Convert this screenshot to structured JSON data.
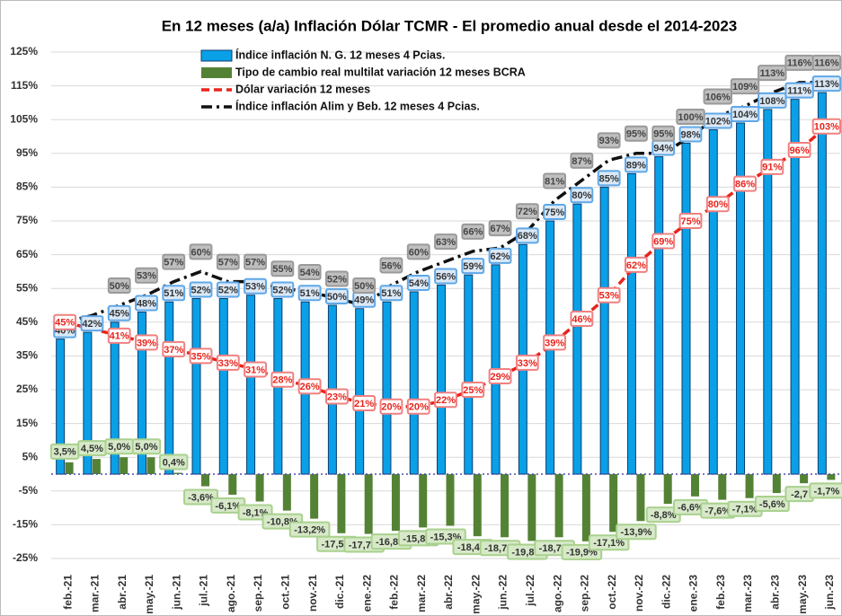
{
  "chart_data": {
    "type": "bar",
    "title": "En 12 meses  (a/a) Inflación Dólar TCMR -  El promedio anual desde el 2014-2023",
    "categories": [
      "feb.-21",
      "mar.-21",
      "abr.-21",
      "may.-21",
      "jun.-21",
      "jul.-21",
      "ago.-21",
      "sep.-21",
      "oct.-21",
      "nov.-21",
      "dic.-21",
      "ene.-22",
      "feb.-22",
      "mar.-22",
      "abr.-22",
      "may.-22",
      "jun.-22",
      "jul.-22",
      "ago.-22",
      "sep.-22",
      "oct.-22",
      "nov.-22",
      "dic.-22",
      "ene.-23",
      "feb.-23",
      "mar.-23",
      "abr.-23",
      "may.-23",
      "jun.-23"
    ],
    "series": [
      {
        "name": "Índice inflación N. G. 12 meses 4 Pcias.",
        "kind": "bar",
        "color": "#0aa0e8",
        "values": [
          40,
          42,
          45,
          48,
          51,
          52,
          52,
          53,
          52,
          51,
          50,
          49,
          51,
          54,
          56,
          59,
          62,
          68,
          75,
          80,
          85,
          89,
          94,
          98,
          102,
          104,
          108,
          111,
          113
        ],
        "value_labels": [
          "40%",
          "42%",
          "45%",
          "48%",
          "51%",
          "52%",
          "52%",
          "53%",
          "52%",
          "51%",
          "50%",
          "49%",
          "51%",
          "54%",
          "56%",
          "59%",
          "62%",
          "68%",
          "75%",
          "80%",
          "85%",
          "89%",
          "94%",
          "98%",
          "102%",
          "104%",
          "108%",
          "111%",
          "113%"
        ]
      },
      {
        "name": "Tipo de cambio real multilat variación 12 meses BCRA",
        "kind": "bar",
        "color": "#548235",
        "values": [
          3.5,
          4.5,
          5.0,
          5.0,
          0.4,
          -3.6,
          -6.1,
          -8.1,
          -10.8,
          -13.2,
          -17.5,
          -17.7,
          -16.8,
          -15.8,
          -15.3,
          -18.4,
          -18.7,
          -19.8,
          -18.7,
          -19.9,
          -17.1,
          -13.9,
          -8.8,
          -6.6,
          -7.6,
          -7.1,
          -5.6,
          -2.7,
          -1.7
        ],
        "value_labels": [
          "3,5%",
          "4,5%",
          "5,0%",
          "5,0%",
          "0,4%",
          "-3,6%",
          "-6,1%",
          "-8,1%",
          "-10,8%",
          "-13,2%",
          "-17,5%",
          "-17,7%",
          "-16,8%",
          "-15,8%",
          "-15,3%",
          "-18,4%",
          "-18,7%",
          "-19,8%",
          "-18,7%",
          "-19,9%",
          "-17,1%",
          "-13,9%",
          "-8,8%",
          "-6,6%",
          "-7,6%",
          "-7,1%",
          "-5,6%",
          "-2,7",
          "-1,7%"
        ]
      },
      {
        "name": "Dólar variación 12 meses",
        "kind": "line",
        "dash": "dashed",
        "color": "#e8241c",
        "values": [
          45,
          43,
          41,
          39,
          37,
          35,
          33,
          31,
          28,
          26,
          23,
          21,
          20,
          20,
          22,
          25,
          29,
          33,
          39,
          46,
          53,
          62,
          69,
          75,
          80,
          86,
          91,
          96,
          103
        ],
        "value_labels": [
          "45%",
          null,
          "41%",
          "39%",
          "37%",
          "35%",
          "33%",
          "31%",
          "28%",
          "26%",
          "23%",
          "21%",
          "20%",
          "20%",
          "22%",
          "25%",
          "29%",
          "33%",
          "39%",
          "46%",
          "53%",
          "62%",
          "69%",
          "75%",
          "80%",
          "86%",
          "91%",
          "96%",
          "103%"
        ]
      },
      {
        "name": "Índice inflación Alim y  Beb. 12 meses 4 Pcias.",
        "kind": "line",
        "dash": "dashdot",
        "color": "#111111",
        "values": [
          45,
          47,
          50,
          53,
          57,
          60,
          57,
          57,
          55,
          54,
          52,
          50,
          56,
          60,
          63,
          66,
          67,
          72,
          81,
          87,
          93,
          95,
          95,
          100,
          106,
          109,
          113,
          116,
          116
        ],
        "value_labels": [
          null,
          null,
          "50%",
          "53%",
          "57%",
          "60%",
          "57%",
          "57%",
          "55%",
          "54%",
          "52%",
          "50%",
          "56%",
          "60%",
          "63%",
          "66%",
          "67%",
          "72%",
          "81%",
          "87%",
          "93%",
          "95%",
          "95%",
          "100%",
          "106%",
          "109%",
          "113%",
          "116%",
          "116%"
        ]
      }
    ],
    "ylim": [
      -25,
      125
    ],
    "yticks": [
      {
        "value": -25,
        "label": "-25%"
      },
      {
        "value": -15,
        "label": "-15%"
      },
      {
        "value": -5,
        "label": "-5%"
      },
      {
        "value": 5,
        "label": "5%"
      },
      {
        "value": 15,
        "label": "15%"
      },
      {
        "value": 25,
        "label": "25%"
      },
      {
        "value": 35,
        "label": "35%"
      },
      {
        "value": 45,
        "label": "45%"
      },
      {
        "value": 55,
        "label": "55%"
      },
      {
        "value": 65,
        "label": "65%"
      },
      {
        "value": 75,
        "label": "75%"
      },
      {
        "value": 85,
        "label": "85%"
      },
      {
        "value": 95,
        "label": "95%"
      },
      {
        "value": 105,
        "label": "105%"
      },
      {
        "value": 115,
        "label": "115%"
      },
      {
        "value": 125,
        "label": "125%"
      }
    ],
    "grid": true
  }
}
